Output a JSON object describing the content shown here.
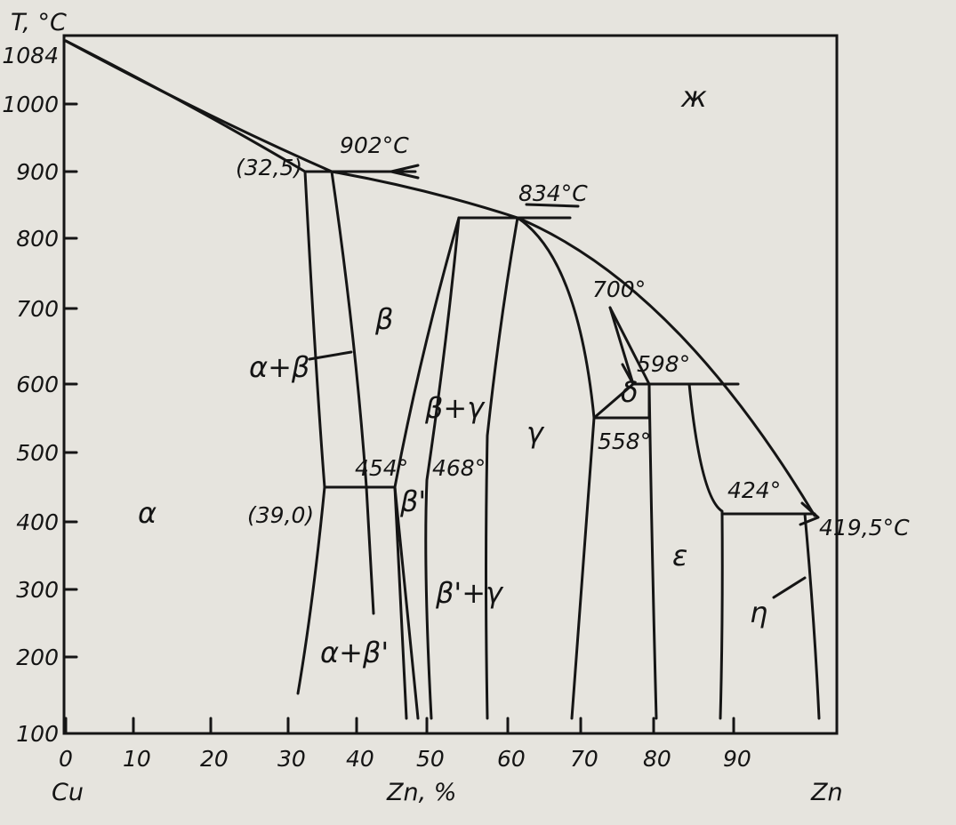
{
  "y_axis_title": "T, °C",
  "x_axis_title": "Zn, %",
  "x_axis_left_label": "Cu",
  "x_axis_right_label": "Zn",
  "x_ticks": [
    "0",
    "10",
    "20",
    "30",
    "40",
    "50",
    "60",
    "70",
    "80",
    "90"
  ],
  "y_ticks": [
    "1084",
    "1000",
    "900",
    "800",
    "700",
    "600",
    "500",
    "400",
    "300",
    "200",
    "100"
  ],
  "phases": {
    "liquid": "ж",
    "alpha": "α",
    "alpha_beta": "α+β",
    "beta": "β",
    "beta_gamma": "β+γ",
    "beta_prime": "β'",
    "beta_prime_gamma": "β'+γ",
    "alpha_beta_prime": "α+β'",
    "gamma": "γ",
    "delta": "δ",
    "epsilon": "ε",
    "eta": "η"
  },
  "annotations": {
    "t902": "902°C",
    "t834": "834°C",
    "t700": "700°",
    "t598": "598°",
    "t558": "558°",
    "t454": "454°",
    "t468": "468°",
    "t424": "424°",
    "t419": "419,5°C",
    "c325": "(32,5)",
    "c390": "(39,0)"
  }
}
